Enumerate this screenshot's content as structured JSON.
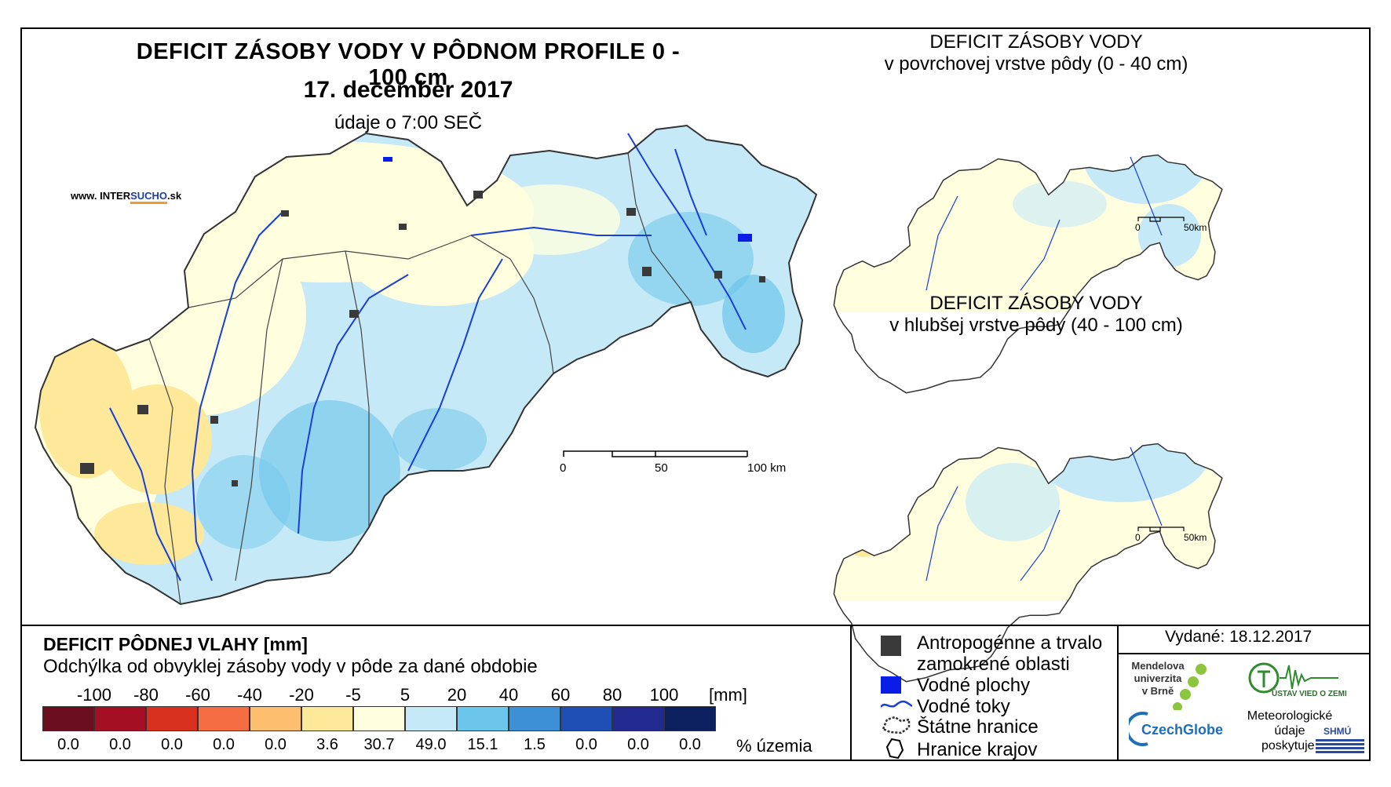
{
  "main_title": "DEFICIT ZÁSOBY VODY V PÔDNOM PROFILE 0 - 100 cm",
  "date": "17. december 2017",
  "data_time": "údaje o 7:00 SEČ",
  "website": {
    "prefix": "www. INTER",
    "brand1": "SUCHO",
    "suffix": ".sk"
  },
  "main_scale": {
    "labels": [
      "0",
      "50",
      "100 km"
    ]
  },
  "inset_top": {
    "line1": "DEFICIT ZÁSOBY VODY",
    "line2": "v povrchovej vrstve pôdy (0 - 40 cm)",
    "scale": [
      "0",
      "50km"
    ]
  },
  "inset_bottom": {
    "line1": "DEFICIT ZÁSOBY VODY",
    "line2": "v hlubšej vrstve pôdy (40 - 100 cm)",
    "scale": [
      "0",
      "50km"
    ]
  },
  "legend": {
    "title": "DEFICIT PÔDNEJ VLAHY [mm]",
    "subtitle": "Odchýlka od obvyklej zásoby vody v pôde za dané obdobie",
    "ticks": [
      "-100",
      "-80",
      "-60",
      "-40",
      "-20",
      "-5",
      "5",
      "20",
      "40",
      "60",
      "80",
      "100"
    ],
    "unit": "[mm]",
    "classes": [
      {
        "color": "#6b0f1f",
        "pct": "0.0"
      },
      {
        "color": "#a50f24",
        "pct": "0.0"
      },
      {
        "color": "#d7301f",
        "pct": "0.0"
      },
      {
        "color": "#f46d43",
        "pct": "0.0"
      },
      {
        "color": "#fdbf6f",
        "pct": "0.0"
      },
      {
        "color": "#fee89a",
        "pct": "3.6"
      },
      {
        "color": "#ffffe0",
        "pct": "30.7"
      },
      {
        "color": "#c6e9f7",
        "pct": "49.0"
      },
      {
        "color": "#6cc5ea",
        "pct": "15.1"
      },
      {
        "color": "#3d8fd6",
        "pct": "1.5"
      },
      {
        "color": "#1f4fb4",
        "pct": "0.0"
      },
      {
        "color": "#232a8f",
        "pct": "0.0"
      },
      {
        "color": "#0c1f5e",
        "pct": "0.0"
      }
    ],
    "pct_label": "% územia"
  },
  "map_legend": {
    "anthropogenic": "Antropogénne a trvalo zamokrené oblasti",
    "water_areas": "Vodné plochy",
    "rivers": "Vodné toky",
    "state_border": "Štátne hranice",
    "region_border": "Hranice krajov"
  },
  "issued": "Vydané: 18.12.2017",
  "logos": {
    "mendel": "Mendelova univerzita v Brně",
    "czechglobe": "CzechGlobe",
    "uvz": "ÚSTAV VIED O ZEMI",
    "met": "Meteorologické údaje poskytuje:",
    "shmu": "SHMÚ"
  },
  "colors": {
    "river": "#1a3fd6",
    "anthropogenic": "#3a3a3a",
    "water": "#0a1de6",
    "border": "#555555"
  }
}
